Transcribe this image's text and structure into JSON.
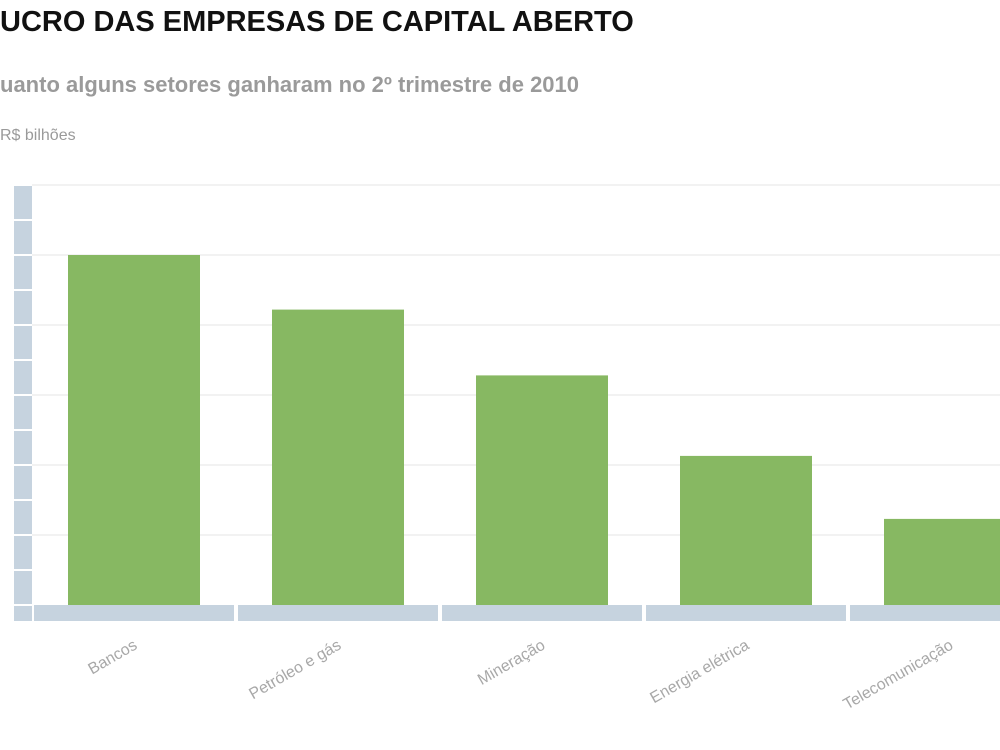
{
  "header": {
    "title": "UCRO DAS EMPRESAS DE CAPITAL ABERTO",
    "subtitle": "uanto alguns setores ganharam no 2º trimestre de 2010",
    "unit": "R$ bilhões"
  },
  "colors": {
    "bar": "#87b862",
    "axis": "#c6d3df",
    "grid": "#eeeeee"
  },
  "chart_data": {
    "type": "bar",
    "title": "UCRO DAS EMPRESAS DE CAPITAL ABERTO",
    "subtitle": "uanto alguns setores ganharam no 2º trimestre de 2010",
    "ylabel": "R$ bilhões",
    "xlabel": "",
    "categories": [
      "Bancos",
      "Petróleo e gás",
      "Mineração",
      "Energia elétrica",
      "Telecomunicação"
    ],
    "values": [
      5.0,
      4.22,
      3.28,
      2.13,
      1.23
    ],
    "ylim": [
      0,
      6
    ],
    "grid": true,
    "legend": "none"
  }
}
